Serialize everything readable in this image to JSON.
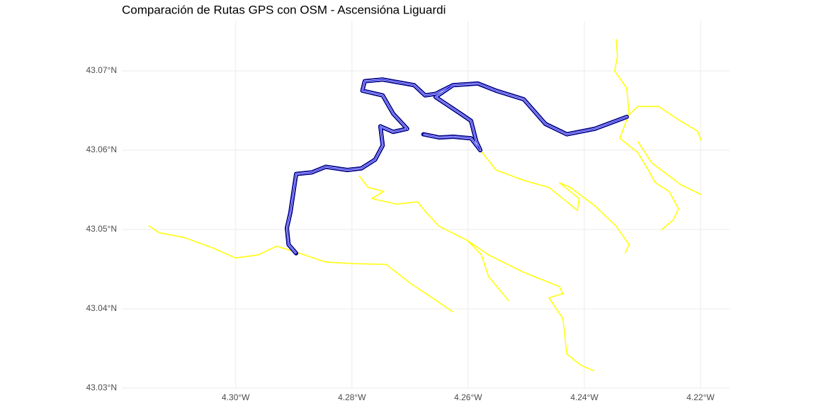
{
  "chart_data": {
    "type": "map",
    "title": "Comparación de Rutas GPS con OSM - Ascensióna Liguardi",
    "xlim": [
      -4.3196,
      -4.215
    ],
    "ylim": [
      43.03,
      43.07625
    ],
    "xticks": [
      {
        "value": -4.3,
        "label": "4.30°W"
      },
      {
        "value": -4.28,
        "label": "4.28°W"
      },
      {
        "value": -4.26,
        "label": "4.26°W"
      },
      {
        "value": -4.24,
        "label": "4.24°W"
      },
      {
        "value": -4.22,
        "label": "4.22°W"
      }
    ],
    "yticks": [
      {
        "value": 43.03,
        "label": "43.03°N"
      },
      {
        "value": 43.04,
        "label": "43.04°N"
      },
      {
        "value": 43.05,
        "label": "43.05°N"
      },
      {
        "value": 43.06,
        "label": "43.06°N"
      },
      {
        "value": 43.07,
        "label": "43.07°N"
      }
    ],
    "grid": true,
    "series": [
      {
        "color": "#ffff00",
        "lon": [
          -4.315,
          -4.3132,
          -4.3089,
          -4.304,
          -4.3,
          -4.2961,
          -4.293,
          -4.2894,
          -4.2845,
          -4.2796,
          -4.2741,
          -4.2699,
          -4.2662,
          -4.2626
        ],
        "lat": [
          43.0505,
          43.0496,
          43.049,
          43.0477,
          43.0464,
          43.0468,
          43.0479,
          43.0471,
          43.0459,
          43.0457,
          43.0456,
          43.0432,
          43.0414,
          43.0396
        ]
      },
      {
        "color": "#ffff00",
        "lon": [
          -4.2579,
          -4.2552,
          -4.2504,
          -4.2461,
          -4.243,
          -4.2412,
          -4.2409,
          -4.2443,
          -4.2424,
          -4.2382,
          -4.2345,
          -4.2323,
          -4.233
        ],
        "lat": [
          43.06,
          43.0575,
          43.0562,
          43.0553,
          43.0535,
          43.0524,
          43.0539,
          43.0559,
          43.0553,
          43.053,
          43.0504,
          43.0481,
          43.047
        ]
      },
      {
        "color": "#ffff00",
        "lon": [
          -4.2788,
          -4.2772,
          -4.2745,
          -4.2766,
          -4.2723,
          -4.2687,
          -4.2674,
          -4.265,
          -4.2601,
          -4.2565,
          -4.2504,
          -4.2443,
          -4.2437,
          -4.2461,
          -4.2437,
          -4.243,
          -4.2406,
          -4.2384
        ],
        "lat": [
          43.0568,
          43.0553,
          43.0548,
          43.0539,
          43.0532,
          43.0535,
          43.0523,
          43.0504,
          43.0486,
          43.0468,
          43.0446,
          43.0428,
          43.0419,
          43.0414,
          43.0388,
          43.0343,
          43.0329,
          43.0322
        ]
      },
      {
        "color": "#ffff00",
        "lon": [
          -4.2601,
          -4.2577,
          -4.2565,
          -4.253
        ],
        "lat": [
          43.0486,
          43.0468,
          43.0441,
          43.041
        ]
      },
      {
        "color": "#ffff00",
        "lon": [
          -4.2345,
          -4.2343,
          -4.2348,
          -4.2327,
          -4.2323,
          -4.2339,
          -4.2308,
          -4.229,
          -4.2278,
          -4.2254,
          -4.2238,
          -4.2247,
          -4.2268
        ],
        "lat": [
          43.074,
          43.0718,
          43.07,
          43.0678,
          43.0646,
          43.0615,
          43.0597,
          43.0575,
          43.0559,
          43.0548,
          43.0526,
          43.0512,
          43.0499
        ]
      },
      {
        "color": "#ffff00",
        "lon": [
          -4.2327,
          -4.2308,
          -4.2272,
          -4.2235,
          -4.2205,
          -4.2199
        ],
        "lat": [
          43.0642,
          43.0655,
          43.0655,
          43.0637,
          43.0624,
          43.0612
        ]
      },
      {
        "color": "#ffff00",
        "lon": [
          -4.2308,
          -4.2284,
          -4.2235,
          -4.2199
        ],
        "lat": [
          43.0611,
          43.0584,
          43.0557,
          43.0544
        ]
      },
      {
        "color": "#0000ff",
        "lon": [
          -4.2896,
          -4.2909,
          -4.2912,
          -4.2906,
          -4.2896,
          -4.2869,
          -4.2845,
          -4.2808,
          -4.2784,
          -4.276,
          -4.2747,
          -4.2751,
          -4.2729,
          -4.2705,
          -4.2729,
          -4.2747,
          -4.2782,
          -4.2778,
          -4.2747,
          -4.2693,
          -4.2674,
          -4.2656,
          -4.2626,
          -4.2583,
          -4.2552,
          -4.2504,
          -4.2467,
          -4.243,
          -4.2382,
          -4.2345,
          -4.2327,
          -4.2382,
          -4.243,
          -4.2467,
          -4.2504,
          -4.2552,
          -4.2583,
          -4.2626,
          -4.2656,
          -4.2613,
          -4.2595,
          -4.2586,
          -4.2579,
          -4.2595,
          -4.2626,
          -4.265,
          -4.2677
        ],
        "lat": [
          43.047,
          43.0481,
          43.0502,
          43.0521,
          43.057,
          43.0572,
          43.0579,
          43.0575,
          43.0577,
          43.0588,
          43.0606,
          43.063,
          43.0623,
          43.0627,
          43.0646,
          43.0669,
          43.0675,
          43.0687,
          43.0689,
          43.0682,
          43.0669,
          43.0671,
          43.0682,
          43.0684,
          43.0675,
          43.0664,
          43.0633,
          43.062,
          43.0627,
          43.0637,
          43.0642,
          43.0627,
          43.062,
          43.0633,
          43.0664,
          43.0675,
          43.0684,
          43.0682,
          43.0667,
          43.0646,
          43.0637,
          43.0611,
          43.06,
          43.0615,
          43.0617,
          43.0616,
          43.062
        ]
      }
    ]
  }
}
